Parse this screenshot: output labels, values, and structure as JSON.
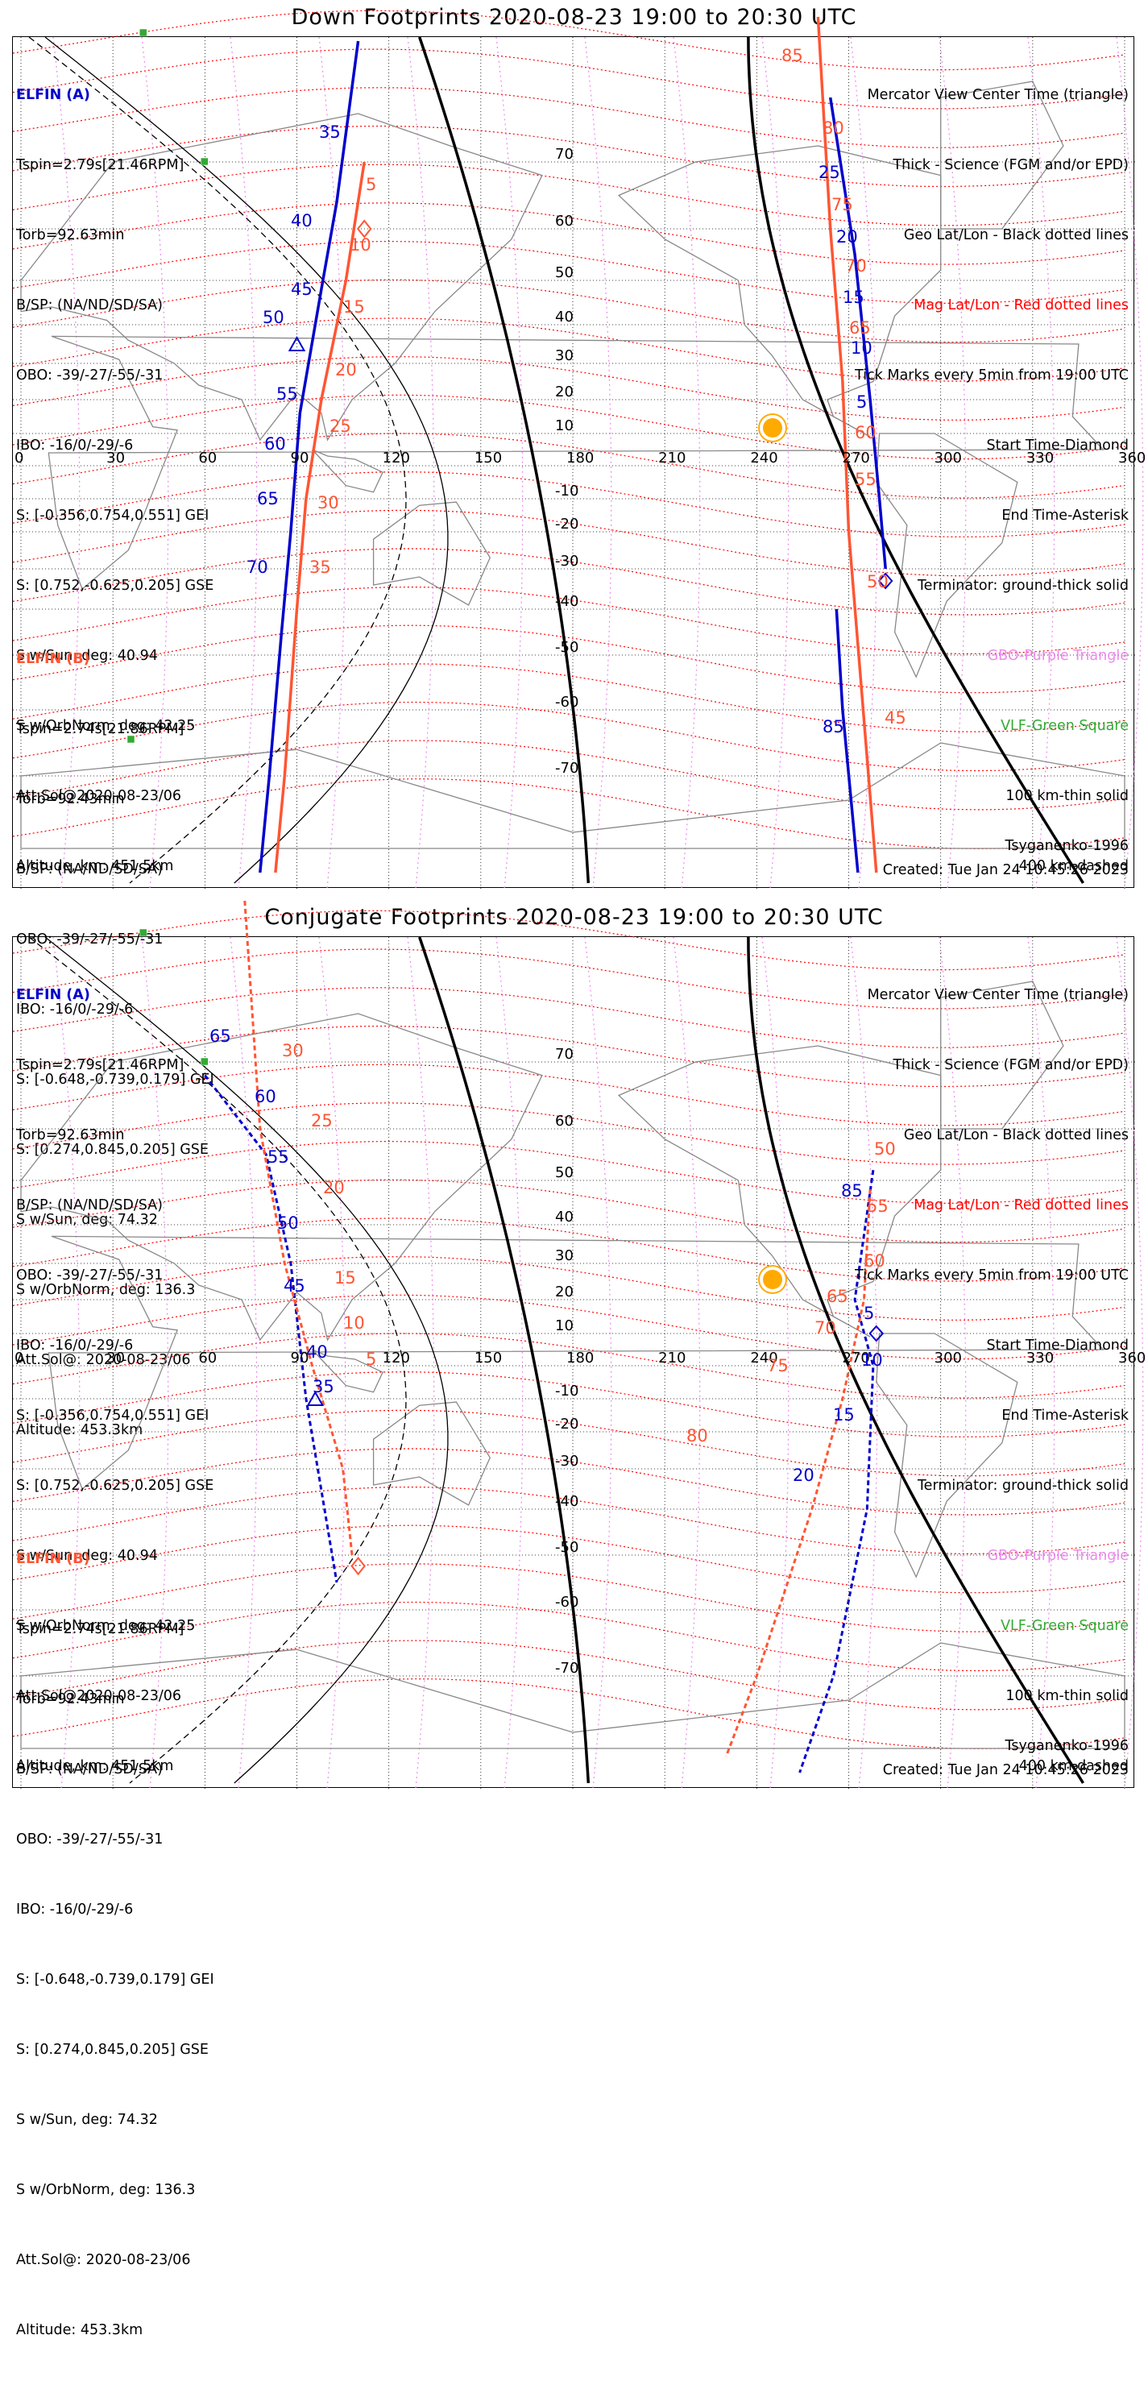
{
  "panels": [
    {
      "title": "Down Footprints 2020-08-23 19:00 to 20:30 UTC",
      "elfin_a": {
        "header": "ELFIN (A)",
        "lines": [
          "Tspin=2.79s[21.46RPM]",
          "Torb=92.63min",
          "B/SP: (NA/ND/SD/SA)",
          "OBO: -39/-27/-55/-31",
          "IBO: -16/0/-29/-6",
          "S: [-0.356,0.754,0.551] GEI",
          "S: [0.752,-0.625,0.205] GSE",
          "S w/Sun, deg: 40.94",
          "S w/OrbNorm, deg: 42.25",
          "Att.Sol@2020-08-23/06",
          "Altitude, km: 451.5km"
        ]
      },
      "elfin_b": {
        "header": "ELFIN (B)",
        "lines": [
          "Tspin=2.74s[21.86RPM]",
          "Torb=92.43min",
          "B/SP: (NA/ND/SD/SA)",
          "OBO: -39/-27/-55/-31",
          "IBO: -16/0/-29/-6",
          "S: [-0.648,-0.739,0.179] GEI",
          "S: [0.274,0.845,0.205] GSE",
          "S w/Sun, deg: 74.32",
          "S w/OrbNorm, deg: 136.3",
          "Att.Sol@: 2020-08-23/06",
          "Altitude: 453.3km"
        ]
      },
      "legend": {
        "lines": [
          "Mercator View Center Time (triangle)",
          "Thick - Science (FGM and/or EPD)",
          "Geo Lat/Lon - Black dotted lines"
        ],
        "red_line": "Mag Lat/Lon - Red dotted lines",
        "lines2": [
          "Tick Marks every 5min from 19:00 UTC",
          "Start Time-Diamond",
          "End Time-Asterisk",
          "Terminator: ground-thick solid"
        ],
        "purple_line": "GBO-Purple Triangle",
        "green_line": "VLF-Green Square",
        "lines3": [
          "100 km-thin solid",
          "400 km-dashed"
        ]
      },
      "model": "Tsyganenko-1996",
      "created": "Created: Tue Jan 24 10:45:26 2023",
      "track_a_labels": [
        "35",
        "40",
        "45",
        "50",
        "55",
        "60",
        "65",
        "70",
        "25",
        "20",
        "15",
        "10",
        "5",
        "85"
      ],
      "track_b_labels": [
        "5",
        "10",
        "15",
        "20",
        "25",
        "30",
        "35",
        "85",
        "80",
        "75",
        "70",
        "65",
        "60",
        "55",
        "50",
        "45"
      ]
    },
    {
      "title": "Conjugate Footprints 2020-08-23 19:00 to 20:30 UTC",
      "elfin_a": {
        "header": "ELFIN (A)",
        "lines": [
          "Tspin=2.79s[21.46RPM]",
          "Torb=92.63min",
          "B/SP: (NA/ND/SD/SA)",
          "OBO: -39/-27/-55/-31",
          "IBO: -16/0/-29/-6",
          "S: [-0.356,0.754,0.551] GEI",
          "S: [0.752,-0.625,0.205] GSE",
          "S w/Sun, deg: 40.94",
          "S w/OrbNorm, deg: 42.25",
          "Att.Sol@2020-08-23/06",
          "Altitude, km: 451.5km"
        ]
      },
      "elfin_b": {
        "header": "ELFIN (B)",
        "lines": [
          "Tspin=2.74s[21.86RPM]",
          "Torb=92.43min",
          "B/SP: (NA/ND/SD/SA)",
          "OBO: -39/-27/-55/-31",
          "IBO: -16/0/-29/-6",
          "S: [-0.648,-0.739,0.179] GEI",
          "S: [0.274,0.845,0.205] GSE",
          "S w/Sun, deg: 74.32",
          "S w/OrbNorm, deg: 136.3",
          "Att.Sol@: 2020-08-23/06",
          "Altitude: 453.3km"
        ]
      },
      "legend": {
        "lines": [
          "Mercator View Center Time (triangle)",
          "Thick - Science (FGM and/or EPD)",
          "Geo Lat/Lon - Black dotted lines"
        ],
        "red_line": "Mag Lat/Lon - Red dotted lines",
        "lines2": [
          "Tick Marks every 5min from 19:00 UTC",
          "Start Time-Diamond",
          "End Time-Asterisk",
          "Terminator: ground-thick solid"
        ],
        "purple_line": "GBO-Purple Triangle",
        "green_line": "VLF-Green Square",
        "lines3": [
          "100 km-thin solid",
          "400 km-dashed"
        ]
      },
      "model": "Tsyganenko-1996",
      "created": "Created: Tue Jan 24 10:45:26 2023",
      "track_a_labels": [
        "65",
        "60",
        "55",
        "50",
        "45",
        "40",
        "35",
        "85",
        "5",
        "10",
        "15",
        "20"
      ],
      "track_b_labels": [
        "30",
        "25",
        "20",
        "15",
        "10",
        "5",
        "50",
        "55",
        "60",
        "65",
        "70",
        "75",
        "80"
      ]
    }
  ],
  "map": {
    "lon_ticks": [
      "0",
      "30",
      "60",
      "90",
      "120",
      "150",
      "180",
      "210",
      "240",
      "270",
      "300",
      "330",
      "360"
    ],
    "lat_ticks": [
      "70",
      "60",
      "50",
      "40",
      "30",
      "20",
      "10",
      "-10",
      "-20",
      "-30",
      "-40",
      "-50",
      "-60",
      "-70"
    ],
    "lon_range": [
      0,
      360
    ],
    "lat_range": [
      -80,
      80
    ],
    "colors": {
      "elfin_a": "#0000cc",
      "elfin_b": "#ff5533",
      "mag_grid": "#ff0000",
      "geo_grid": "#000000",
      "gbo": "#ee88ee",
      "vlf": "#33aa33",
      "sun": "#ffaa00"
    }
  }
}
